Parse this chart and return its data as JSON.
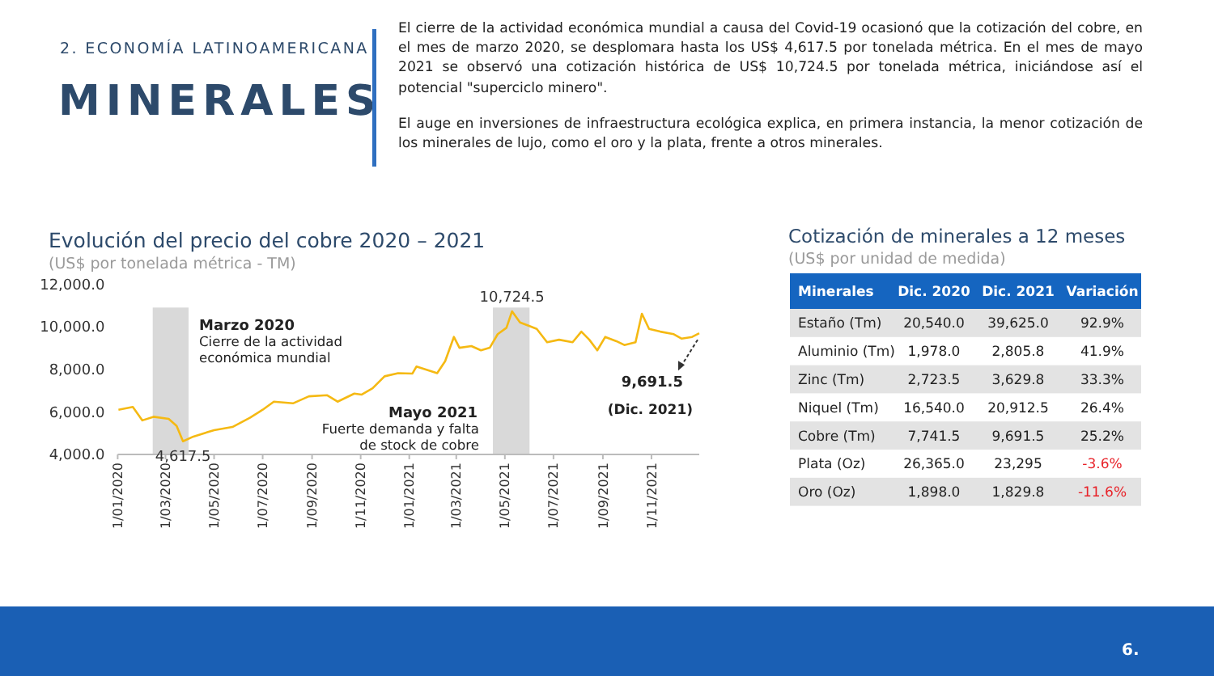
{
  "chart_data": [
    {
      "type": "line",
      "title": "Evolución del precio del cobre 2020 – 2021",
      "subtitle": "(US$ por tonelada métrica - TM)",
      "x": [
        "2020-01-02",
        "2020-01-20",
        "2020-02-01",
        "2020-02-15",
        "2020-03-05",
        "2020-03-15",
        "2020-03-23",
        "2020-04-05",
        "2020-05-01",
        "2020-05-24",
        "2020-06-15",
        "2020-07-01",
        "2020-07-15",
        "2020-08-08",
        "2020-08-28",
        "2020-09-20",
        "2020-10-03",
        "2020-10-24",
        "2020-11-02",
        "2020-11-16",
        "2020-12-01",
        "2020-12-18",
        "2021-01-05",
        "2021-01-10",
        "2021-01-25",
        "2021-02-05",
        "2021-02-15",
        "2021-02-26",
        "2021-03-05",
        "2021-03-20",
        "2021-04-01",
        "2021-04-12",
        "2021-04-22",
        "2021-05-03",
        "2021-05-10",
        "2021-05-20",
        "2021-06-01",
        "2021-06-10",
        "2021-06-23",
        "2021-07-08",
        "2021-07-25",
        "2021-08-05",
        "2021-08-15",
        "2021-08-25",
        "2021-09-04",
        "2021-09-18",
        "2021-09-28",
        "2021-10-12",
        "2021-10-20",
        "2021-10-29",
        "2021-11-12",
        "2021-11-29",
        "2021-12-09",
        "2021-12-22",
        "2021-12-31"
      ],
      "series": [
        {
          "color": "#f5b913",
          "values": [
            6100,
            6230,
            5600,
            5770,
            5670,
            5340,
            4617.5,
            4840,
            5140,
            5290,
            5720,
            6100,
            6480,
            6400,
            6730,
            6780,
            6480,
            6860,
            6810,
            7110,
            7670,
            7820,
            7800,
            8130,
            7950,
            7820,
            8380,
            9520,
            9010,
            9090,
            8890,
            9010,
            9650,
            9950,
            10724.5,
            10200,
            10030,
            9900,
            9270,
            9390,
            9270,
            9770,
            9390,
            8890,
            9520,
            9320,
            9140,
            9270,
            10610,
            9900,
            9770,
            9650,
            9440,
            9520,
            9691.5
          ]
        }
      ],
      "xlim": [
        "2020-01-01",
        "2021-12-31"
      ],
      "xticks": [
        {
          "value": "2020-01-01",
          "label": "1/01/2020"
        },
        {
          "value": "2020-03-01",
          "label": "1/03/2020"
        },
        {
          "value": "2020-05-01",
          "label": "1/05/2020"
        },
        {
          "value": "2020-07-01",
          "label": "1/07/2020"
        },
        {
          "value": "2020-09-01",
          "label": "1/09/2020"
        },
        {
          "value": "2020-11-01",
          "label": "1/11/2020"
        },
        {
          "value": "2021-01-01",
          "label": "1/01/2021"
        },
        {
          "value": "2021-03-01",
          "label": "1/03/2021"
        },
        {
          "value": "2021-05-01",
          "label": "1/05/2021"
        },
        {
          "value": "2021-07-01",
          "label": "1/07/2021"
        },
        {
          "value": "2021-09-01",
          "label": "1/09/2021"
        },
        {
          "value": "2021-11-01",
          "label": "1/11/2021"
        }
      ],
      "ylim": [
        4000,
        12000
      ],
      "yticks": [
        {
          "value": 4000,
          "label": "4,000.0"
        },
        {
          "value": 6000,
          "label": "6,000.0"
        },
        {
          "value": 8000,
          "label": "8,000.0"
        },
        {
          "value": 10000,
          "label": "10,000.0"
        },
        {
          "value": 12000,
          "label": "12,000.0"
        }
      ],
      "bands": [
        {
          "axis": "x",
          "from": "2020-02-14",
          "to": "2020-03-30",
          "color": "#d9d9d9"
        },
        {
          "axis": "x",
          "from": "2021-04-16",
          "to": "2021-06-01",
          "color": "#d9d9d9"
        }
      ],
      "grid": false,
      "annotations": [
        "2. ECONOMÍA LATINOAMERICANA",
        "MINERALES",
        "El cierre de la actividad económica mundial a causa del Covid-19 ocasionó que la cotización del cobre, en el mes de marzo 2020, se desplomara hasta los US$ 4,617.5 por tonelada métrica. En el mes de mayo 2021 se observó una cotización histórica de US$ 10,724.5 por tonelada métrica, iniciándose así el potencial \"superciclo minero\".",
        "El auge en inversiones de infraestructura ecológica explica, en primera instancia, la menor cotización de los minerales de lujo, como el oro y la plata, frente a otros minerales.",
        "6.",
        {
          "text": "4,617.5",
          "x": "2020-03-23",
          "y": 4617.5
        },
        {
          "text": "10,724.5",
          "x": "2021-05-10",
          "y": 10724.5
        },
        {
          "text": "9,691.5",
          "x": "2021-12-31",
          "y": 9691.5
        },
        "(Dic. 2021)",
        "Marzo 2020",
        "Cierre de la actividad económica mundial",
        "Mayo 2021",
        "Fuerte demanda y falta de stock de cobre"
      ]
    },
    {
      "type": "other",
      "title": "Cotización de minerales a 12 meses",
      "subtitle": "(US$ por unidad de medida)",
      "categories": [
        "Minerales",
        "Dic. 2020",
        "Dic. 2021",
        "Variación"
      ],
      "y_categories": [
        "Estaño (Tm)",
        "Aluminio (Tm)",
        "Zinc (Tm)",
        "Niquel (Tm)",
        "Cobre (Tm)",
        "Plata (Oz)",
        "Oro (Oz)"
      ],
      "cell_labels": [
        [
          "20,540.0",
          "39,625.0",
          "92.9%"
        ],
        [
          "1,978.0",
          "2,805.8",
          "41.9%"
        ],
        [
          "2,723.5",
          "3,629.8",
          "33.3%"
        ],
        [
          "16,540.0",
          "20,912.5",
          "26.4%"
        ],
        [
          "7,741.5",
          "9,691.5",
          "25.2%"
        ],
        [
          "26,365.0",
          "23,295",
          "-3.6%"
        ],
        [
          "1,898.0",
          "1,829.8",
          "-11.6%"
        ]
      ]
    }
  ]
}
